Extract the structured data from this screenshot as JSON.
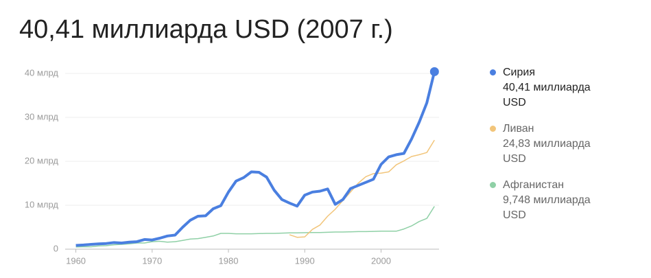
{
  "chart_data": {
    "type": "line",
    "title": "40,41 миллиарда USD (2007 г.)",
    "x": [
      1960,
      1961,
      1962,
      1963,
      1964,
      1965,
      1966,
      1967,
      1968,
      1969,
      1970,
      1971,
      1972,
      1973,
      1974,
      1975,
      1976,
      1977,
      1978,
      1979,
      1980,
      1981,
      1982,
      1983,
      1984,
      1985,
      1986,
      1987,
      1988,
      1989,
      1990,
      1991,
      1992,
      1993,
      1994,
      1995,
      1996,
      1997,
      1998,
      1999,
      2000,
      2001,
      2002,
      2003,
      2004,
      2005,
      2006,
      2007
    ],
    "series": [
      {
        "name": "Сирия",
        "color": "#4a7fe0",
        "latest_label": "40,41 миллиарда USD",
        "highlight_last": true,
        "values": [
          0.86,
          0.95,
          1.1,
          1.2,
          1.3,
          1.5,
          1.4,
          1.6,
          1.7,
          2.2,
          2.1,
          2.5,
          3.0,
          3.2,
          5.0,
          6.6,
          7.5,
          7.6,
          9.2,
          9.9,
          13.0,
          15.5,
          16.3,
          17.6,
          17.5,
          16.4,
          13.4,
          11.3,
          10.5,
          9.8,
          12.3,
          13.0,
          13.2,
          13.7,
          10.2,
          11.3,
          13.8,
          14.5,
          15.2,
          15.9,
          19.3,
          21.0,
          21.5,
          21.8,
          25.1,
          28.9,
          33.3,
          40.41
        ]
      },
      {
        "name": "Ливан",
        "color": "#f2c57a",
        "latest_label": "24,83 миллиарда USD",
        "values": [
          null,
          null,
          null,
          null,
          null,
          null,
          null,
          null,
          null,
          null,
          null,
          null,
          null,
          null,
          null,
          null,
          null,
          null,
          null,
          null,
          null,
          null,
          null,
          null,
          null,
          null,
          null,
          null,
          3.3,
          2.7,
          2.8,
          4.5,
          5.5,
          7.5,
          9.1,
          11.1,
          13.0,
          15.0,
          16.5,
          17.2,
          17.3,
          17.6,
          19.2,
          20.1,
          21.1,
          21.5,
          22.0,
          24.83
        ]
      },
      {
        "name": "Афганистан",
        "color": "#8fd0a6",
        "latest_label": "9,748 миллиарда USD",
        "values": [
          0.5,
          0.55,
          0.55,
          0.75,
          0.8,
          1.0,
          1.1,
          1.2,
          1.4,
          1.4,
          1.7,
          1.8,
          1.6,
          1.7,
          2.0,
          2.3,
          2.4,
          2.7,
          3.0,
          3.6,
          3.6,
          3.5,
          3.5,
          3.5,
          3.55,
          3.6,
          3.6,
          3.65,
          3.7,
          3.7,
          3.75,
          3.8,
          3.8,
          3.85,
          3.9,
          3.9,
          3.95,
          4.0,
          4.0,
          4.05,
          4.1,
          4.1,
          4.1,
          4.6,
          5.3,
          6.3,
          7.0,
          9.748
        ]
      }
    ],
    "xlim": [
      1958.6,
      2007.6
    ],
    "xticks": [
      1960,
      1970,
      1980,
      1990,
      2000
    ],
    "ylim": [
      0,
      40
    ],
    "yticks": [
      0,
      {
        "value": 10,
        "label": "10 млрд"
      },
      {
        "value": 20,
        "label": "20 млрд"
      },
      {
        "value": 30,
        "label": "30 млрд"
      },
      {
        "value": 40,
        "label": "40 млрд"
      }
    ],
    "grid": true,
    "legend": "right"
  }
}
